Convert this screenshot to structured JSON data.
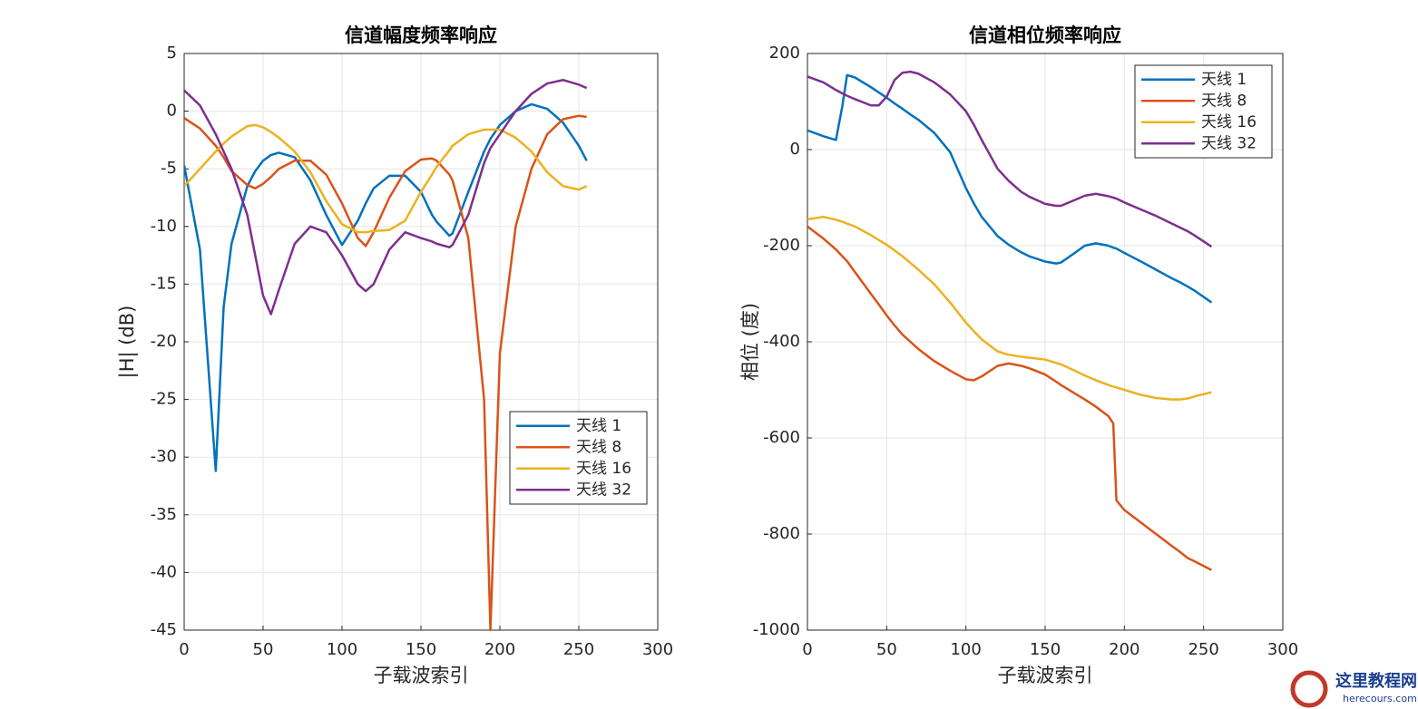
{
  "chart_data": [
    {
      "type": "line",
      "title": "信道幅度频率响应",
      "xlabel": "子载波索引",
      "ylabel": "|H| (dB)",
      "x": [
        0,
        10,
        20,
        25,
        30,
        40,
        45,
        50,
        55,
        60,
        70,
        80,
        90,
        100,
        110,
        115,
        120,
        130,
        140,
        150,
        157,
        160,
        168,
        170,
        180,
        190,
        194,
        200,
        210,
        220,
        230,
        240,
        250,
        255
      ],
      "series": [
        {
          "name": "天线 1",
          "color": "#0072BD",
          "values": [
            -4.7,
            -12,
            -31.2,
            -17,
            -11.5,
            -6.5,
            -5.2,
            -4.3,
            -3.8,
            -3.6,
            -4,
            -6,
            -9,
            -11.6,
            -9.5,
            -8,
            -6.7,
            -5.6,
            -5.6,
            -7,
            -9,
            -9.6,
            -10.8,
            -10.6,
            -7,
            -3.5,
            -2.4,
            -1.2,
            0,
            0.6,
            0.2,
            -1,
            -3,
            -4.3
          ]
        },
        {
          "name": "天线 8",
          "color": "#D95319",
          "values": [
            -0.6,
            -1.5,
            -3,
            -4,
            -5.2,
            -6.4,
            -6.7,
            -6.3,
            -5.7,
            -5,
            -4.3,
            -4.3,
            -5.5,
            -8,
            -11,
            -11.7,
            -10.5,
            -7.5,
            -5.2,
            -4.2,
            -4.1,
            -4.3,
            -5.5,
            -6,
            -11,
            -25,
            -45,
            -21,
            -10,
            -5,
            -2,
            -0.7,
            -0.4,
            -0.5
          ]
        },
        {
          "name": "天线 16",
          "color": "#EDB120",
          "values": [
            -6.5,
            -5,
            -3.5,
            -2.8,
            -2.2,
            -1.3,
            -1.2,
            -1.4,
            -1.8,
            -2.3,
            -3.5,
            -5.3,
            -7.8,
            -9.8,
            -10.5,
            -10.5,
            -10.4,
            -10.3,
            -9.5,
            -7,
            -5.5,
            -4.8,
            -3.4,
            -3,
            -2,
            -1.6,
            -1.6,
            -1.6,
            -2.3,
            -3.5,
            -5.3,
            -6.5,
            -6.8,
            -6.5
          ]
        },
        {
          "name": "天线 32",
          "color": "#7E2F8E",
          "values": [
            1.8,
            0.5,
            -2,
            -3.5,
            -5,
            -9,
            -12.5,
            -16,
            -17.6,
            -15.5,
            -11.5,
            -10,
            -10.5,
            -12.5,
            -15,
            -15.6,
            -15,
            -12,
            -10.5,
            -11,
            -11.3,
            -11.5,
            -11.8,
            -11.6,
            -9,
            -4.5,
            -3.2,
            -2,
            0,
            1.5,
            2.4,
            2.7,
            2.3,
            2
          ]
        }
      ],
      "xlim": [
        0,
        300
      ],
      "xticks": [
        0,
        50,
        100,
        150,
        200,
        250,
        300
      ],
      "ylim": [
        -45,
        5
      ],
      "yticks": [
        5,
        0,
        -5,
        -10,
        -15,
        -20,
        -25,
        -30,
        -35,
        -40,
        -45
      ],
      "grid": true,
      "legend": "lower right"
    },
    {
      "type": "line",
      "title": "信道相位频率响应",
      "xlabel": "子载波索引",
      "ylabel": "相位 (度)",
      "x": [
        0,
        10,
        18,
        22,
        25,
        30,
        40,
        45,
        50,
        55,
        60,
        65,
        70,
        80,
        90,
        100,
        105,
        110,
        120,
        127,
        135,
        140,
        150,
        157,
        160,
        170,
        175,
        182,
        190,
        193,
        195,
        200,
        210,
        220,
        230,
        235,
        240,
        245,
        255
      ],
      "series": [
        {
          "name": "天线 1",
          "color": "#0072BD",
          "values": [
            40,
            28,
            20,
            90,
            155,
            150,
            130,
            119,
            108,
            96,
            85,
            73,
            62,
            35,
            -5,
            -80,
            -112,
            -140,
            -180,
            -198,
            -214,
            -222,
            -233,
            -237,
            -235,
            -212,
            -200,
            -195,
            -200,
            -204,
            -206,
            -215,
            -232,
            -250,
            -268,
            -276,
            -285,
            -295,
            -318
          ]
        },
        {
          "name": "天线 8",
          "color": "#D95319",
          "values": [
            -160,
            -185,
            -208,
            -222,
            -232,
            -255,
            -300,
            -322,
            -345,
            -366,
            -385,
            -400,
            -415,
            -440,
            -460,
            -478,
            -480,
            -472,
            -450,
            -445,
            -450,
            -455,
            -468,
            -483,
            -490,
            -510,
            -520,
            -535,
            -555,
            -570,
            -730,
            -750,
            -775,
            -800,
            -825,
            -837,
            -850,
            -858,
            -875
          ]
        },
        {
          "name": "天线 16",
          "color": "#EDB120",
          "values": [
            -145,
            -140,
            -146,
            -150,
            -154,
            -160,
            -178,
            -188,
            -198,
            -210,
            -222,
            -236,
            -250,
            -280,
            -318,
            -360,
            -378,
            -395,
            -420,
            -427,
            -431,
            -433,
            -437,
            -444,
            -447,
            -462,
            -470,
            -480,
            -490,
            -493,
            -495,
            -500,
            -510,
            -517,
            -520,
            -520,
            -518,
            -513,
            -505
          ]
        },
        {
          "name": "天线 32",
          "color": "#7E2F8E",
          "values": [
            152,
            140,
            124,
            117,
            112,
            105,
            92,
            92,
            110,
            145,
            160,
            162,
            158,
            140,
            115,
            80,
            52,
            20,
            -40,
            -65,
            -88,
            -98,
            -113,
            -117,
            -117,
            -103,
            -96,
            -92,
            -97,
            -100,
            -102,
            -110,
            -124,
            -138,
            -154,
            -162,
            -170,
            -180,
            -202
          ]
        }
      ],
      "xlim": [
        0,
        300
      ],
      "xticks": [
        0,
        50,
        100,
        150,
        200,
        250,
        300
      ],
      "ylim": [
        -1000,
        200
      ],
      "yticks": [
        200,
        0,
        -200,
        -400,
        -600,
        -800,
        -1000
      ],
      "grid": true,
      "legend": "upper right"
    }
  ],
  "watermark": {
    "name": "这里教程网",
    "url": "herecours.com"
  }
}
